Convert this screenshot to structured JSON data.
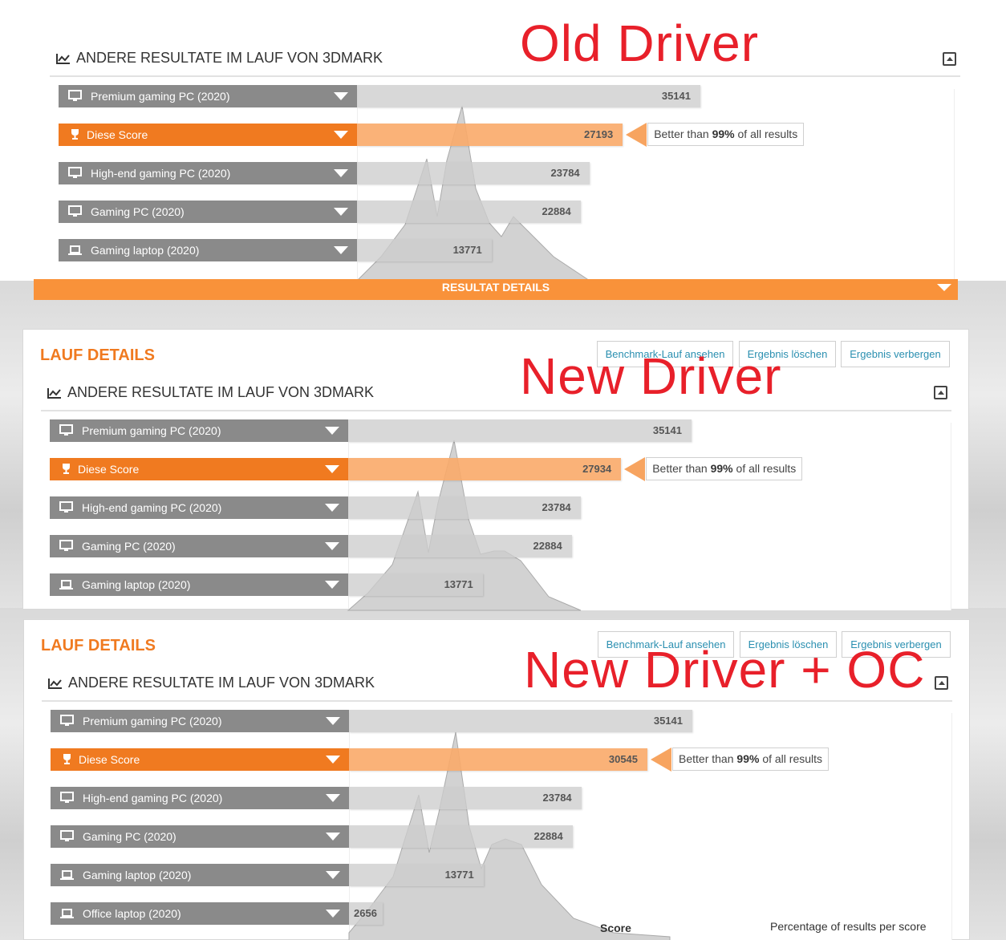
{
  "labels": {
    "old": "Old Driver",
    "new": "New Driver",
    "oc": "New Driver + OC"
  },
  "section": {
    "header": "ANDERE RESULTATE IM LAUF VON 3DMARK",
    "lauf_title": "LAUF DETAILS",
    "resultat_details": "RESULTAT DETAILS",
    "actions": [
      "Benchmark-Lauf ansehen",
      "Ergebnis löschen",
      "Ergebnis verbergen"
    ]
  },
  "tip": {
    "prefix": "Better than",
    "pct": "99%",
    "suffix": "of all results"
  },
  "rows": {
    "premium": "Premium gaming PC (2020)",
    "score": "Diese Score",
    "highend": "High-end gaming PC (2020)",
    "gaming": "Gaming PC (2020)",
    "laptop": "Gaming laptop (2020)",
    "office": "Office laptop (2020)"
  },
  "scores": {
    "premium": 35141,
    "highend": 23784,
    "gaming": 22884,
    "laptop": 13771,
    "office": 2656,
    "old": 27193,
    "new": 27934,
    "oc": 30545
  },
  "axis": {
    "score": "Score",
    "pct": "Percentage of results per score"
  },
  "colors": {
    "accent": "#f07a20",
    "accent_light": "#faaa69",
    "label_gray": "#8a8a8a",
    "overlay_red": "#e8202a",
    "link": "#2a8fb0"
  },
  "icons": {
    "header": "line-chart-icon",
    "device": "monitor-icon",
    "laptop": "laptop-icon",
    "score": "trophy-icon",
    "collapse": "collapse-icon"
  }
}
